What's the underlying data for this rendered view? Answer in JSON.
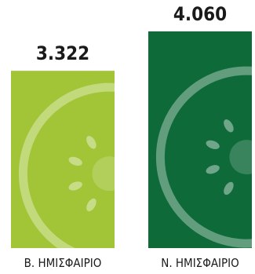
{
  "chart_data": {
    "type": "bar",
    "categories": [
      "Β. ΗΜΙΣΦΑΙΡΙΟ",
      "Ν. ΗΜΙΣΦΑΙΡΙΟ"
    ],
    "values": [
      3322,
      4060
    ],
    "value_labels": [
      "3.322",
      "4.060"
    ],
    "colors": [
      "#a2c537",
      "#0f6a3a"
    ],
    "title": "",
    "xlabel": "",
    "ylabel": "",
    "ylim": [
      0,
      4060
    ],
    "grid": false,
    "legend": "none",
    "bar_decoration": "cucumber-slice-icon"
  }
}
